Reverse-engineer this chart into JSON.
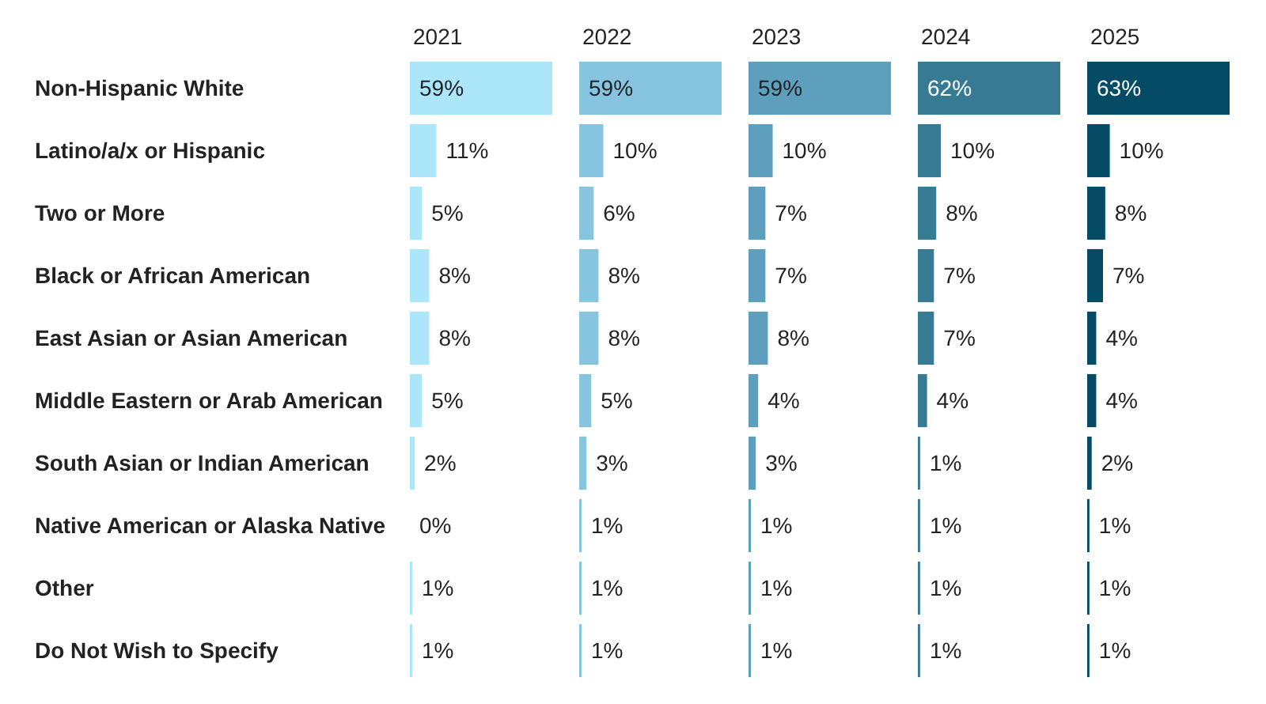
{
  "chart_data": [
    {
      "type": "bar",
      "orientation": "horizontal",
      "title": "2021",
      "color": "#abe6fa",
      "tick_labels": "y",
      "categories": [
        "Non-Hispanic White",
        "Latino/a/x or Hispanic",
        "Two or More",
        "Black or African American",
        "East Asian or Asian American",
        "Middle Eastern or Arab American",
        "South Asian or Indian American",
        "Native American or Alaska Native",
        "Other",
        "Do Not Wish to Specify"
      ],
      "values": [
        59,
        11,
        5,
        8,
        8,
        5,
        2,
        0,
        1,
        1
      ],
      "value_labels": [
        "59%",
        "11%",
        "5%",
        "8%",
        "8%",
        "5%",
        "2%",
        "0%",
        "1%",
        "1%"
      ]
    },
    {
      "type": "bar",
      "orientation": "horizontal",
      "title": "2022",
      "color": "#86c4e0",
      "tick_labels": false,
      "categories": [
        null,
        null,
        null,
        null,
        null,
        null,
        null,
        null,
        null,
        null
      ],
      "values": [
        59,
        10,
        6,
        8,
        8,
        5,
        3,
        1,
        1,
        1
      ],
      "value_labels": [
        "59%",
        "10%",
        "6%",
        "8%",
        "8%",
        "5%",
        "3%",
        "1%",
        "1%",
        "1%"
      ]
    },
    {
      "type": "bar",
      "orientation": "horizontal",
      "title": "2023",
      "color": "#5f9fbe",
      "tick_labels": false,
      "categories": [
        null,
        null,
        null,
        null,
        null,
        null,
        null,
        null,
        null,
        null
      ],
      "values": [
        59,
        10,
        7,
        7,
        8,
        4,
        3,
        1,
        1,
        1
      ],
      "value_labels": [
        "59%",
        "10%",
        "7%",
        "7%",
        "8%",
        "4%",
        "3%",
        "1%",
        "1%",
        "1%"
      ]
    },
    {
      "type": "bar",
      "orientation": "horizontal",
      "title": "2024",
      "color": "#377a93",
      "tick_labels": false,
      "categories": [
        null,
        null,
        null,
        null,
        null,
        null,
        null,
        null,
        null,
        null
      ],
      "values": [
        62,
        10,
        8,
        7,
        7,
        4,
        1,
        1,
        1,
        1
      ],
      "value_labels": [
        "62%",
        "10%",
        "8%",
        "7%",
        "7%",
        "4%",
        "1%",
        "1%",
        "1%",
        "1%"
      ]
    },
    {
      "type": "bar",
      "orientation": "horizontal",
      "title": "2025",
      "color": "#054b66",
      "tick_labels": false,
      "categories": [
        null,
        null,
        null,
        null,
        null,
        null,
        null,
        null,
        null,
        null
      ],
      "values": [
        63,
        10,
        8,
        7,
        4,
        4,
        2,
        1,
        1,
        1
      ],
      "value_labels": [
        "63%",
        "10%",
        "8%",
        "7%",
        "4%",
        "4%",
        "2%",
        "1%",
        "1%",
        "1%"
      ]
    }
  ]
}
